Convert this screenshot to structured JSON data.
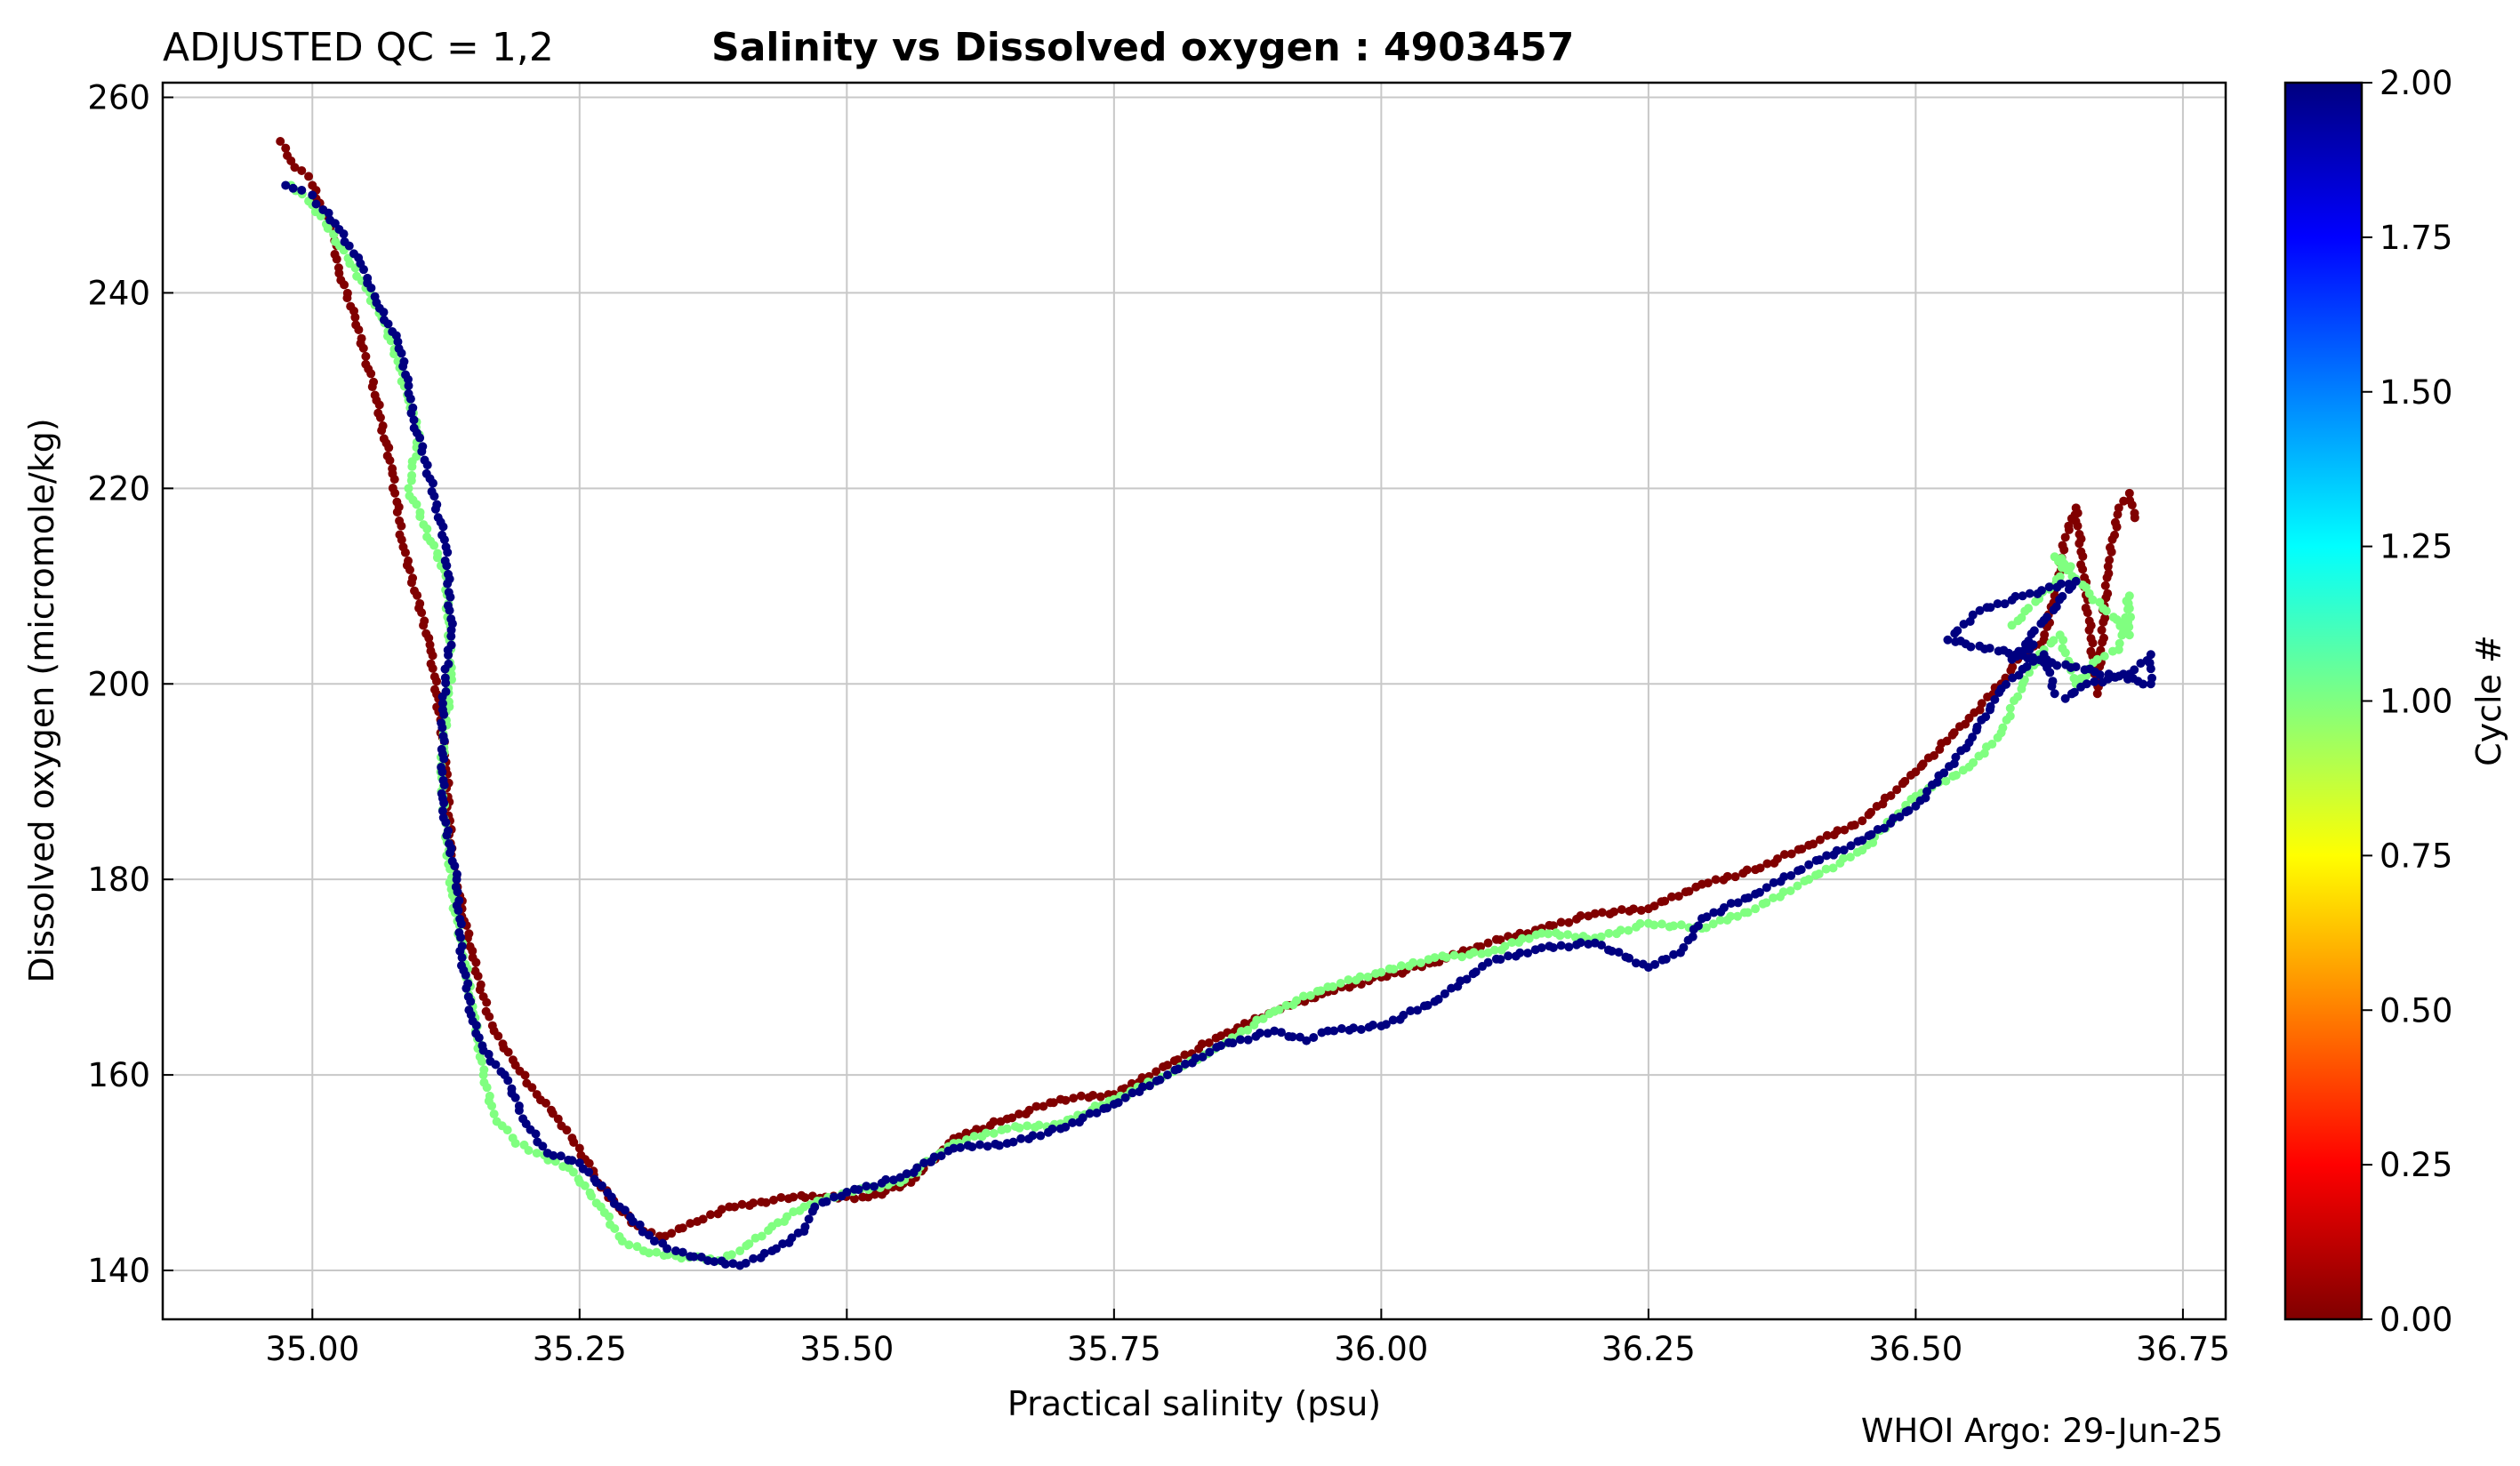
{
  "chart_data": {
    "type": "scatter",
    "title_prefix": "ADJUSTED QC = 1,2",
    "title": "Salinity vs Dissolved oxygen",
    "title_sep": " : ",
    "float_id": "4903457",
    "xlabel": "Practical salinity  (psu)",
    "ylabel": "Dissolved oxygen  (micromole/kg)",
    "colorbar_label": "Cycle #",
    "footer": "WHOI Argo: 29-Jun-25",
    "xlim": [
      34.86,
      36.79
    ],
    "ylim": [
      135,
      261.5
    ],
    "xticks": [
      35.0,
      35.25,
      35.5,
      35.75,
      36.0,
      36.25,
      36.5,
      36.75
    ],
    "xtick_labels": [
      "35.00",
      "35.25",
      "35.50",
      "35.75",
      "36.00",
      "36.25",
      "36.50",
      "36.75"
    ],
    "yticks": [
      140,
      160,
      180,
      200,
      220,
      240,
      260
    ],
    "ytick_labels": [
      "140",
      "160",
      "180",
      "200",
      "220",
      "240",
      "260"
    ],
    "grid": true,
    "colorbar": {
      "range": [
        0,
        2
      ],
      "colormap": "jet",
      "ticks": [
        0,
        0.25,
        0.5,
        0.75,
        1.0,
        1.25,
        1.5,
        1.75,
        2.0
      ],
      "tick_labels": [
        "0.00",
        "0.25",
        "0.50",
        "0.75",
        "1.00",
        "1.25",
        "1.50",
        "1.75",
        "2.00"
      ],
      "stops": [
        "#800000",
        "#ff0000",
        "#ff8000",
        "#ffff00",
        "#80ff80",
        "#00ffff",
        "#0080ff",
        "#0000ff",
        "#000080"
      ]
    },
    "series": [
      {
        "cycle": 0,
        "color": "#800000",
        "points": [
          [
            34.97,
            255.5
          ],
          [
            34.975,
            254.8
          ],
          [
            34.98,
            253.5
          ],
          [
            34.99,
            252.5
          ],
          [
            35.0,
            251.0
          ],
          [
            35.01,
            248.5
          ],
          [
            35.02,
            246.0
          ],
          [
            35.025,
            242.0
          ],
          [
            35.04,
            237.5
          ],
          [
            35.05,
            233.5
          ],
          [
            35.06,
            229.0
          ],
          [
            35.075,
            221.5
          ],
          [
            35.085,
            214.0
          ],
          [
            35.11,
            204.0
          ],
          [
            35.125,
            192.0
          ],
          [
            35.13,
            182.5
          ],
          [
            35.14,
            177.0
          ],
          [
            35.15,
            172.0
          ],
          [
            35.16,
            168.0
          ],
          [
            35.17,
            164.5
          ],
          [
            35.19,
            161.0
          ],
          [
            35.21,
            158.0
          ],
          [
            35.23,
            155.5
          ],
          [
            35.25,
            152.5
          ],
          [
            35.27,
            148.5
          ],
          [
            35.29,
            146.0
          ],
          [
            35.31,
            144.0
          ],
          [
            35.33,
            143.5
          ],
          [
            35.36,
            145.0
          ],
          [
            35.39,
            146.5
          ],
          [
            35.42,
            147.0
          ],
          [
            35.45,
            147.5
          ],
          [
            35.48,
            147.5
          ],
          [
            35.52,
            147.5
          ],
          [
            35.56,
            149.0
          ],
          [
            35.6,
            153.5
          ],
          [
            35.65,
            155.5
          ],
          [
            35.7,
            157.5
          ],
          [
            35.75,
            158.0
          ],
          [
            35.8,
            161.0
          ],
          [
            35.85,
            164.0
          ],
          [
            35.9,
            166.5
          ],
          [
            35.95,
            168.5
          ],
          [
            36.0,
            170.0
          ],
          [
            36.05,
            171.5
          ],
          [
            36.1,
            173.5
          ],
          [
            36.15,
            175.0
          ],
          [
            36.2,
            176.5
          ],
          [
            36.25,
            177.0
          ],
          [
            36.3,
            179.5
          ],
          [
            36.35,
            181.0
          ],
          [
            36.4,
            183.5
          ],
          [
            36.45,
            186.0
          ],
          [
            36.5,
            191.0
          ],
          [
            36.55,
            196.5
          ],
          [
            36.58,
            200.0
          ],
          [
            36.6,
            203.0
          ],
          [
            36.62,
            204.5
          ],
          [
            36.63,
            209.0
          ],
          [
            36.64,
            215.0
          ],
          [
            36.65,
            218.0
          ],
          [
            36.67,
            199.0
          ],
          [
            36.68,
            212.0
          ],
          [
            36.69,
            218.0
          ],
          [
            36.7,
            219.5
          ],
          [
            36.705,
            217.0
          ]
        ]
      },
      {
        "cycle": 1,
        "color": "#80ff80",
        "points": [
          [
            34.98,
            251.0
          ],
          [
            35.0,
            249.0
          ],
          [
            35.02,
            246.0
          ],
          [
            35.035,
            243.0
          ],
          [
            35.05,
            240.5
          ],
          [
            35.065,
            237.5
          ],
          [
            35.08,
            233.0
          ],
          [
            35.09,
            229.0
          ],
          [
            35.1,
            225.5
          ],
          [
            35.09,
            220.0
          ],
          [
            35.125,
            211.0
          ],
          [
            35.13,
            201.0
          ],
          [
            35.12,
            191.0
          ],
          [
            35.13,
            179.0
          ],
          [
            35.15,
            167.0
          ],
          [
            35.16,
            160.0
          ],
          [
            35.17,
            156.0
          ],
          [
            35.19,
            153.0
          ],
          [
            35.21,
            152.0
          ],
          [
            35.24,
            150.5
          ],
          [
            35.27,
            146.5
          ],
          [
            35.29,
            143.0
          ],
          [
            35.31,
            142.0
          ],
          [
            35.34,
            141.5
          ],
          [
            35.38,
            141.0
          ],
          [
            35.4,
            142.0
          ],
          [
            35.43,
            144.5
          ],
          [
            35.46,
            146.5
          ],
          [
            35.5,
            148.0
          ],
          [
            35.55,
            149.0
          ],
          [
            35.6,
            153.0
          ],
          [
            35.65,
            154.5
          ],
          [
            35.7,
            155.0
          ],
          [
            35.75,
            157.5
          ],
          [
            35.8,
            160.0
          ],
          [
            35.85,
            163.0
          ],
          [
            35.9,
            166.5
          ],
          [
            35.95,
            169.0
          ],
          [
            36.0,
            170.5
          ],
          [
            36.05,
            172.0
          ],
          [
            36.1,
            172.5
          ],
          [
            36.15,
            174.5
          ],
          [
            36.2,
            174.0
          ],
          [
            36.25,
            175.5
          ],
          [
            36.3,
            175.0
          ],
          [
            36.35,
            177.0
          ],
          [
            36.4,
            180.0
          ],
          [
            36.45,
            183.0
          ],
          [
            36.5,
            188.5
          ],
          [
            36.55,
            191.5
          ],
          [
            36.58,
            195.0
          ],
          [
            36.6,
            200.0
          ],
          [
            36.62,
            203.5
          ],
          [
            36.635,
            205.0
          ],
          [
            36.65,
            200.0
          ],
          [
            36.67,
            202.5
          ],
          [
            36.69,
            203.5
          ],
          [
            36.7,
            209.0
          ],
          [
            36.7,
            205.0
          ],
          [
            36.63,
            213.0
          ],
          [
            36.645,
            212.0
          ],
          [
            36.59,
            206.0
          ]
        ]
      },
      {
        "cycle": 2,
        "color": "#000080",
        "points": [
          [
            34.975,
            251.0
          ],
          [
            34.99,
            250.5
          ],
          [
            35.0,
            250.0
          ],
          [
            35.01,
            248.5
          ],
          [
            35.025,
            246.5
          ],
          [
            35.045,
            243.0
          ],
          [
            35.06,
            239.0
          ],
          [
            35.08,
            235.0
          ],
          [
            35.09,
            230.5
          ],
          [
            35.095,
            227.0
          ],
          [
            35.11,
            221.0
          ],
          [
            35.125,
            214.0
          ],
          [
            35.13,
            205.5
          ],
          [
            35.122,
            198.0
          ],
          [
            35.122,
            187.0
          ],
          [
            35.135,
            180.0
          ],
          [
            35.14,
            172.0
          ],
          [
            35.15,
            165.5
          ],
          [
            35.16,
            162.5
          ],
          [
            35.18,
            160.0
          ],
          [
            35.2,
            155.0
          ],
          [
            35.22,
            152.0
          ],
          [
            35.25,
            151.0
          ],
          [
            35.28,
            147.5
          ],
          [
            35.3,
            145.0
          ],
          [
            35.32,
            143.0
          ],
          [
            35.34,
            142.0
          ],
          [
            35.37,
            141.0
          ],
          [
            35.4,
            140.5
          ],
          [
            35.43,
            142.0
          ],
          [
            35.46,
            144.0
          ],
          [
            35.47,
            146.5
          ],
          [
            35.5,
            148.0
          ],
          [
            35.55,
            149.5
          ],
          [
            35.6,
            152.5
          ],
          [
            35.65,
            153.0
          ],
          [
            35.7,
            154.5
          ],
          [
            35.75,
            157.0
          ],
          [
            35.8,
            160.0
          ],
          [
            35.85,
            163.0
          ],
          [
            35.9,
            164.5
          ],
          [
            35.93,
            163.5
          ],
          [
            35.95,
            164.5
          ],
          [
            36.0,
            165.0
          ],
          [
            36.05,
            167.5
          ],
          [
            36.1,
            171.5
          ],
          [
            36.15,
            173.0
          ],
          [
            36.2,
            173.5
          ],
          [
            36.25,
            171.0
          ],
          [
            36.28,
            172.5
          ],
          [
            36.3,
            176.0
          ],
          [
            36.35,
            178.5
          ],
          [
            36.4,
            181.5
          ],
          [
            36.45,
            184.0
          ],
          [
            36.5,
            187.5
          ],
          [
            36.55,
            194.0
          ],
          [
            36.58,
            199.5
          ],
          [
            36.6,
            201.5
          ],
          [
            36.62,
            203.0
          ],
          [
            36.63,
            199.0
          ],
          [
            36.64,
            198.5
          ],
          [
            36.66,
            200.0
          ],
          [
            36.68,
            200.5
          ],
          [
            36.7,
            201.0
          ],
          [
            36.72,
            203.0
          ],
          [
            36.72,
            200.0
          ],
          [
            36.53,
            204.5
          ],
          [
            36.56,
            207.5
          ],
          [
            36.6,
            209.0
          ],
          [
            36.65,
            210.5
          ],
          [
            36.59,
            202.5
          ],
          [
            36.61,
            204.0
          ]
        ]
      }
    ]
  }
}
